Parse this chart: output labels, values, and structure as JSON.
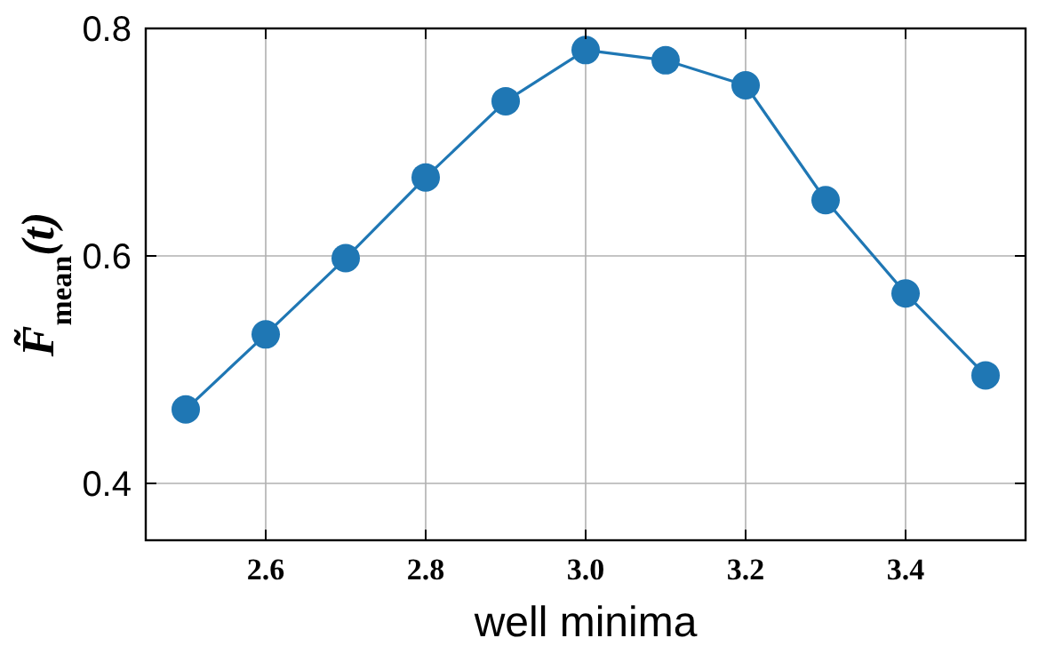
{
  "chart_data": {
    "type": "line",
    "xlabel": "well minima",
    "ylabel": "F̃$_{mean}$(t)",
    "x": [
      2.5,
      2.6,
      2.7,
      2.8,
      2.9,
      3.0,
      3.1,
      3.2,
      3.3,
      3.4,
      3.5
    ],
    "series": [
      {
        "color": "#1f77b4",
        "values": [
          0.465,
          0.531,
          0.598,
          0.669,
          0.736,
          0.781,
          0.772,
          0.75,
          0.649,
          0.567,
          0.495
        ]
      }
    ],
    "xlim": [
      2.45,
      3.55
    ],
    "ylim": [
      0.35,
      0.8
    ],
    "xticks": [
      {
        "value": 2.6,
        "label": "2.6"
      },
      {
        "value": 2.8,
        "label": "2.8"
      },
      {
        "value": 3.0,
        "label": "3.0"
      },
      {
        "value": 3.2,
        "label": "3.2"
      },
      {
        "value": 3.4,
        "label": "3.4"
      }
    ],
    "yticks": [
      {
        "value": 0.4,
        "label": "0.4"
      },
      {
        "value": 0.6,
        "label": "0.6"
      },
      {
        "value": 0.8,
        "label": "0.8"
      }
    ],
    "grid": true,
    "marker": "circle",
    "line_style": "solid"
  }
}
